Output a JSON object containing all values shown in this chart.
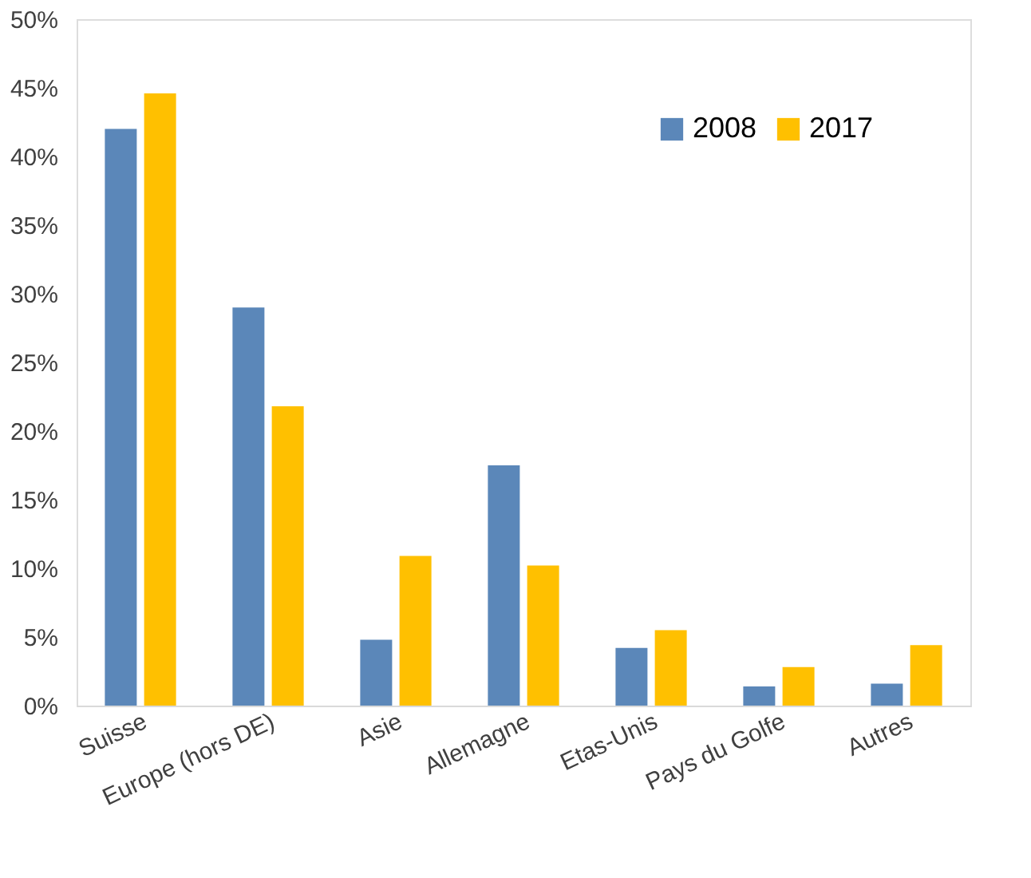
{
  "chart_data": {
    "type": "bar",
    "categories": [
      "Suisse",
      "Europe (hors DE)",
      "Asie",
      "Allemagne",
      "Etas-Unis",
      "Pays du Golfe",
      "Autres"
    ],
    "series": [
      {
        "name": "2008",
        "color": "#5b87b9",
        "values": [
          42.0,
          29.0,
          4.8,
          17.5,
          4.2,
          1.4,
          1.6
        ]
      },
      {
        "name": "2017",
        "color": "#ffc000",
        "values": [
          44.6,
          21.8,
          10.9,
          10.2,
          5.5,
          2.8,
          4.4
        ]
      }
    ],
    "ylim": [
      0,
      50
    ],
    "yticks": [
      {
        "value": 0,
        "label": "0%"
      },
      {
        "value": 5,
        "label": "5%"
      },
      {
        "value": 10,
        "label": "10%"
      },
      {
        "value": 15,
        "label": "15%"
      },
      {
        "value": 20,
        "label": "20%"
      },
      {
        "value": 25,
        "label": "25%"
      },
      {
        "value": 30,
        "label": "30%"
      },
      {
        "value": 35,
        "label": "35%"
      },
      {
        "value": 40,
        "label": "40%"
      },
      {
        "value": 45,
        "label": "45%"
      },
      {
        "value": 50,
        "label": "50%"
      }
    ],
    "grid": false,
    "legend": "top right"
  }
}
